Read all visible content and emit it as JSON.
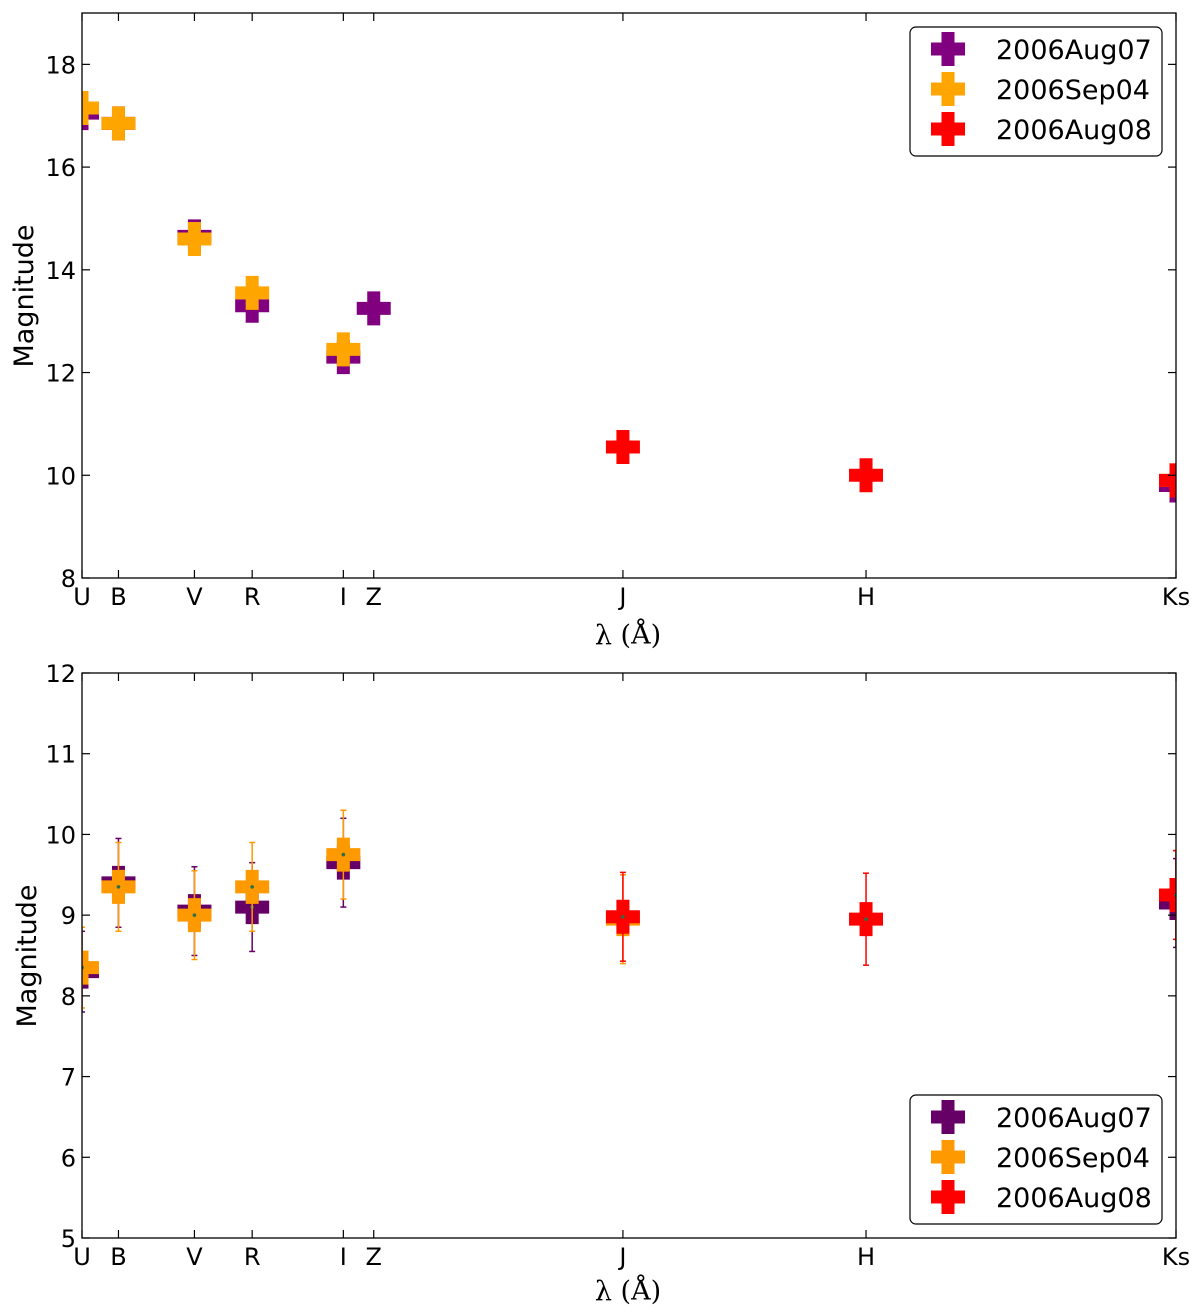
{
  "chart_data": [
    {
      "type": "scatter",
      "ylabel": "Magnitude",
      "xlabel": "λ (Å)",
      "ylim": [
        8,
        19
      ],
      "yticks": [
        8,
        10,
        12,
        14,
        16,
        18
      ],
      "xlim": [
        3600,
        21600
      ],
      "xticks": [
        {
          "label": "U",
          "x": 3600
        },
        {
          "label": "B",
          "x": 4200
        },
        {
          "label": "V",
          "x": 5450
        },
        {
          "label": "R",
          "x": 6400
        },
        {
          "label": "I",
          "x": 7900
        },
        {
          "label": "Z",
          "x": 8400
        },
        {
          "label": "J",
          "x": 12500
        },
        {
          "label": "H",
          "x": 16500
        },
        {
          "label": "Ks",
          "x": 21600
        }
      ],
      "legend_position": "top-right",
      "series": [
        {
          "name": "2006Aug07",
          "color": "#800080",
          "points": [
            [
              3600,
              17.05
            ],
            [
              4200,
              16.85
            ],
            [
              5450,
              14.65
            ],
            [
              6400,
              13.3
            ],
            [
              7900,
              12.3
            ],
            [
              8400,
              13.25
            ],
            [
              21600,
              9.8
            ]
          ]
        },
        {
          "name": "2006Sep04",
          "color": "#FFA500",
          "points": [
            [
              3600,
              17.15
            ],
            [
              4200,
              16.85
            ],
            [
              5450,
              14.6
            ],
            [
              6400,
              13.55
            ],
            [
              7900,
              12.45
            ],
            [
              21600,
              9.9
            ]
          ]
        },
        {
          "name": "2006Aug08",
          "color": "#FF0000",
          "points": [
            [
              12500,
              10.55
            ],
            [
              16500,
              10.0
            ],
            [
              21600,
              9.9
            ]
          ]
        }
      ]
    },
    {
      "type": "scatter",
      "ylabel": "Magnitude",
      "xlabel": "λ (Å)",
      "ylim": [
        5,
        12
      ],
      "yticks": [
        5,
        6,
        7,
        8,
        9,
        10,
        11,
        12
      ],
      "xlim": [
        3600,
        21600
      ],
      "xticks": [
        {
          "label": "U",
          "x": 3600
        },
        {
          "label": "B",
          "x": 4200
        },
        {
          "label": "V",
          "x": 5450
        },
        {
          "label": "R",
          "x": 6400
        },
        {
          "label": "I",
          "x": 7900
        },
        {
          "label": "Z",
          "x": 8400
        },
        {
          "label": "J",
          "x": 12500
        },
        {
          "label": "H",
          "x": 16500
        },
        {
          "label": "Ks",
          "x": 21600
        }
      ],
      "legend_position": "lower-right",
      "series": [
        {
          "name": "2006Aug07",
          "color": "#660066",
          "points": [
            [
              3600,
              8.3,
              0.5
            ],
            [
              4200,
              9.4,
              0.55
            ],
            [
              5450,
              9.05,
              0.55
            ],
            [
              6400,
              9.1,
              0.55
            ],
            [
              7900,
              9.65,
              0.55
            ],
            [
              21600,
              9.15,
              0.55
            ]
          ]
        },
        {
          "name": "2006Sep04",
          "color": "#FF9900",
          "points": [
            [
              3600,
              8.35,
              0.5
            ],
            [
              4200,
              9.35,
              0.55
            ],
            [
              5450,
              9.0,
              0.55
            ],
            [
              6400,
              9.35,
              0.55
            ],
            [
              7900,
              9.75,
              0.55
            ],
            [
              12500,
              8.95,
              0.55
            ],
            [
              21600,
              9.25,
              0.55
            ]
          ]
        },
        {
          "name": "2006Aug08",
          "color": "#FF0000",
          "points": [
            [
              12500,
              8.98,
              0.55
            ],
            [
              16500,
              8.95,
              0.57
            ],
            [
              21600,
              9.25,
              0.55
            ]
          ]
        }
      ]
    }
  ]
}
